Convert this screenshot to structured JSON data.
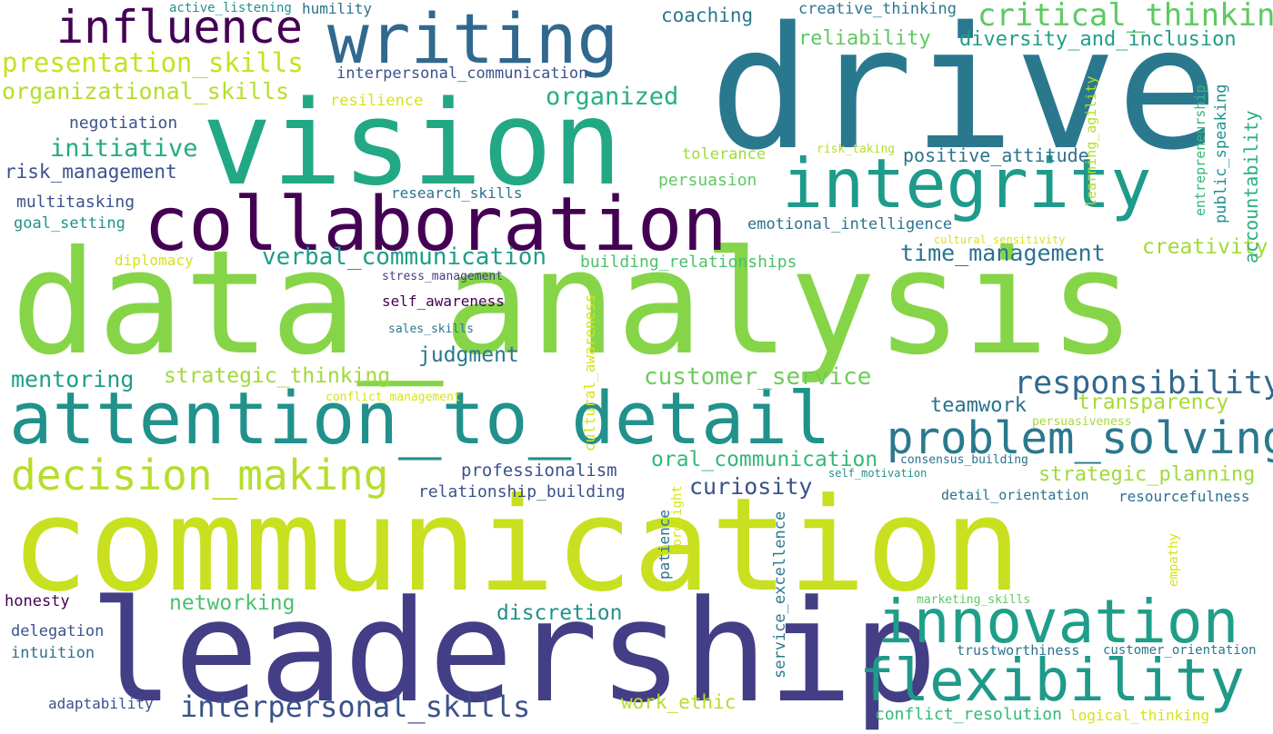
{
  "words": [
    {
      "text": "communication",
      "color": "#c8e020"
    },
    {
      "text": "data_analysis",
      "color": "#86d549"
    },
    {
      "text": "drive",
      "color": "#2a788e"
    },
    {
      "text": "leadership",
      "color": "#433e85"
    },
    {
      "text": "vision",
      "color": "#22a884"
    },
    {
      "text": "collaboration",
      "color": "#440154"
    },
    {
      "text": "attention_to_detail",
      "color": "#21918c"
    },
    {
      "text": "writing",
      "color": "#31688e"
    },
    {
      "text": "integrity",
      "color": "#1e9b8a"
    },
    {
      "text": "innovation",
      "color": "#1f9e89"
    },
    {
      "text": "flexibility",
      "color": "#1f9a8a"
    },
    {
      "text": "problem_solving",
      "color": "#2a788e"
    },
    {
      "text": "decision_making",
      "color": "#b5de2b"
    },
    {
      "text": "influence",
      "color": "#440154"
    },
    {
      "text": "responsibility",
      "color": "#31688e"
    },
    {
      "text": "critical_thinking",
      "color": "#5ec962"
    },
    {
      "text": "interpersonal_skills",
      "color": "#3b528b"
    },
    {
      "text": "presentation_skills",
      "color": "#c8e020"
    },
    {
      "text": "verbal_communication",
      "color": "#1f9e89"
    },
    {
      "text": "time_management",
      "color": "#2c728e"
    },
    {
      "text": "organizational_skills",
      "color": "#b5de2b"
    },
    {
      "text": "customer_service",
      "color": "#6ccd5a"
    },
    {
      "text": "oral_communication",
      "color": "#35b779"
    },
    {
      "text": "strategic_planning",
      "color": "#a0da39"
    },
    {
      "text": "diversity_and_inclusion",
      "color": "#1f9e89"
    },
    {
      "text": "transparency",
      "color": "#a5db36"
    },
    {
      "text": "strategic_thinking",
      "color": "#a0da39"
    },
    {
      "text": "networking",
      "color": "#4ac16d"
    },
    {
      "text": "organized",
      "color": "#29af7f"
    },
    {
      "text": "creativity",
      "color": "#a0da39"
    },
    {
      "text": "positive_attitude",
      "color": "#2c728e"
    },
    {
      "text": "initiative",
      "color": "#25ab82"
    },
    {
      "text": "mentoring",
      "color": "#1f9e89"
    },
    {
      "text": "teamwork",
      "color": "#2c728e"
    },
    {
      "text": "judgment",
      "color": "#2a788e"
    },
    {
      "text": "reliability",
      "color": "#5ec962"
    },
    {
      "text": "curiosity",
      "color": "#3b528b"
    },
    {
      "text": "work_ethic",
      "color": "#b5de2b"
    },
    {
      "text": "discretion",
      "color": "#21918c"
    },
    {
      "text": "coaching",
      "color": "#2a788e"
    },
    {
      "text": "professionalism",
      "color": "#3b528b"
    },
    {
      "text": "risk_management",
      "color": "#3b528b"
    },
    {
      "text": "conflict_resolution",
      "color": "#35b779"
    },
    {
      "text": "building_relationships",
      "color": "#4ac16d"
    },
    {
      "text": "relationship_building",
      "color": "#3b528b"
    },
    {
      "text": "creative_thinking",
      "color": "#2a788e"
    },
    {
      "text": "interpersonal_communication",
      "color": "#3b528b"
    },
    {
      "text": "emotional_intelligence",
      "color": "#2c728e"
    },
    {
      "text": "logical_thinking",
      "color": "#d8e219"
    },
    {
      "text": "resourcefulness",
      "color": "#2c728e"
    },
    {
      "text": "honesty",
      "color": "#440154"
    },
    {
      "text": "delegation",
      "color": "#3b528b"
    },
    {
      "text": "intuition",
      "color": "#2c728e"
    },
    {
      "text": "adaptability",
      "color": "#3b528b"
    },
    {
      "text": "negotiation",
      "color": "#3b528b"
    },
    {
      "text": "multitasking",
      "color": "#3b528b"
    },
    {
      "text": "goal_setting",
      "color": "#21918c"
    },
    {
      "text": "persuasion",
      "color": "#5ec962"
    },
    {
      "text": "tolerance",
      "color": "#a0da39"
    },
    {
      "text": "resilience",
      "color": "#d8e219"
    },
    {
      "text": "research_skills",
      "color": "#2c728e"
    },
    {
      "text": "diplomacy",
      "color": "#d8e219"
    },
    {
      "text": "self_awareness",
      "color": "#440154"
    },
    {
      "text": "detail_orientation",
      "color": "#2c728e"
    },
    {
      "text": "trustworthiness",
      "color": "#2c728e"
    },
    {
      "text": "customer_orientation",
      "color": "#2a788e"
    },
    {
      "text": "active_listening",
      "color": "#21918c"
    },
    {
      "text": "humility",
      "color": "#2c728e"
    },
    {
      "text": "stress_management",
      "color": "#433e85"
    },
    {
      "text": "sales_skills",
      "color": "#2a788e"
    },
    {
      "text": "conflict_management",
      "color": "#d8e219"
    },
    {
      "text": "consensus_building",
      "color": "#2c728e"
    },
    {
      "text": "self_motivation",
      "color": "#21918c"
    },
    {
      "text": "persuasiveness",
      "color": "#a5db36"
    },
    {
      "text": "marketing_skills",
      "color": "#5ec962"
    },
    {
      "text": "risk_taking",
      "color": "#b5de2b"
    },
    {
      "text": "cultural_sensitivity",
      "color": "#d8e219"
    },
    {
      "text": "accountability",
      "color": "#29af7f"
    },
    {
      "text": "public_speaking",
      "color": "#21918c"
    },
    {
      "text": "entrepreneurship",
      "color": "#35b779"
    },
    {
      "text": "learning_agility",
      "color": "#b5de2b"
    },
    {
      "text": "cultural_awareness",
      "color": "#d8e219"
    },
    {
      "text": "patience",
      "color": "#2c728e"
    },
    {
      "text": "foresight",
      "color": "#d8e219"
    },
    {
      "text": "service_excellence",
      "color": "#2a788e"
    },
    {
      "text": "empathy",
      "color": "#d8e219"
    }
  ]
}
